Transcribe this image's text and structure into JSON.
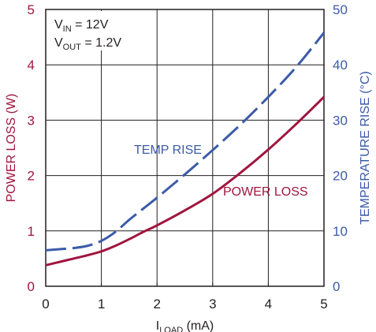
{
  "chart_data": {
    "type": "line",
    "annotation_lines": [
      {
        "main": "V",
        "sub": "IN",
        "rest": " = 12V"
      },
      {
        "main": "V",
        "sub": "OUT",
        "rest": " = 1.2V"
      }
    ],
    "xlabel": {
      "main": "I",
      "sub": "LOAD",
      "rest": " (mA)"
    },
    "ylabel_left": "POWER LOSS (W)",
    "ylabel_right": "TEMPERATURE RISE (°C)",
    "xlim": [
      0,
      5
    ],
    "ylim_left": [
      0,
      5
    ],
    "ylim_right": [
      0,
      50
    ],
    "x_ticks": [
      "0",
      "1",
      "2",
      "3",
      "4",
      "5"
    ],
    "y_left_ticks": [
      "0",
      "1",
      "2",
      "3",
      "4",
      "5"
    ],
    "y_right_ticks": [
      "0",
      "10",
      "20",
      "30",
      "40",
      "50"
    ],
    "grid": true,
    "series": [
      {
        "name": "POWER LOSS",
        "axis": "left",
        "style": "solid",
        "color": "#a0153e",
        "x": [
          0,
          0.25,
          0.5,
          0.75,
          1.0,
          1.25,
          1.5,
          1.75,
          2.0,
          2.5,
          3.0,
          3.5,
          4.0,
          4.5,
          5.0
        ],
        "y": [
          0.38,
          0.44,
          0.5,
          0.56,
          0.63,
          0.73,
          0.85,
          0.98,
          1.1,
          1.37,
          1.67,
          2.05,
          2.47,
          2.93,
          3.42
        ]
      },
      {
        "name": "TEMP RISE",
        "axis": "right",
        "style": "dashed",
        "color": "#3b5ba9",
        "x": [
          0,
          0.25,
          0.5,
          0.75,
          1.0,
          1.25,
          1.5,
          1.75,
          2.0,
          2.5,
          3.0,
          3.5,
          4.0,
          4.5,
          5.0
        ],
        "y": [
          6.5,
          6.7,
          6.9,
          7.3,
          8.2,
          9.8,
          12.0,
          14.0,
          16.0,
          20.2,
          24.6,
          29.2,
          34.2,
          39.6,
          45.8
        ]
      }
    ],
    "colors": {
      "axis": "#231f20",
      "grid": "#231f20",
      "left_axis_labels": "#a0153e",
      "right_axis_labels": "#3b5ba9"
    }
  }
}
